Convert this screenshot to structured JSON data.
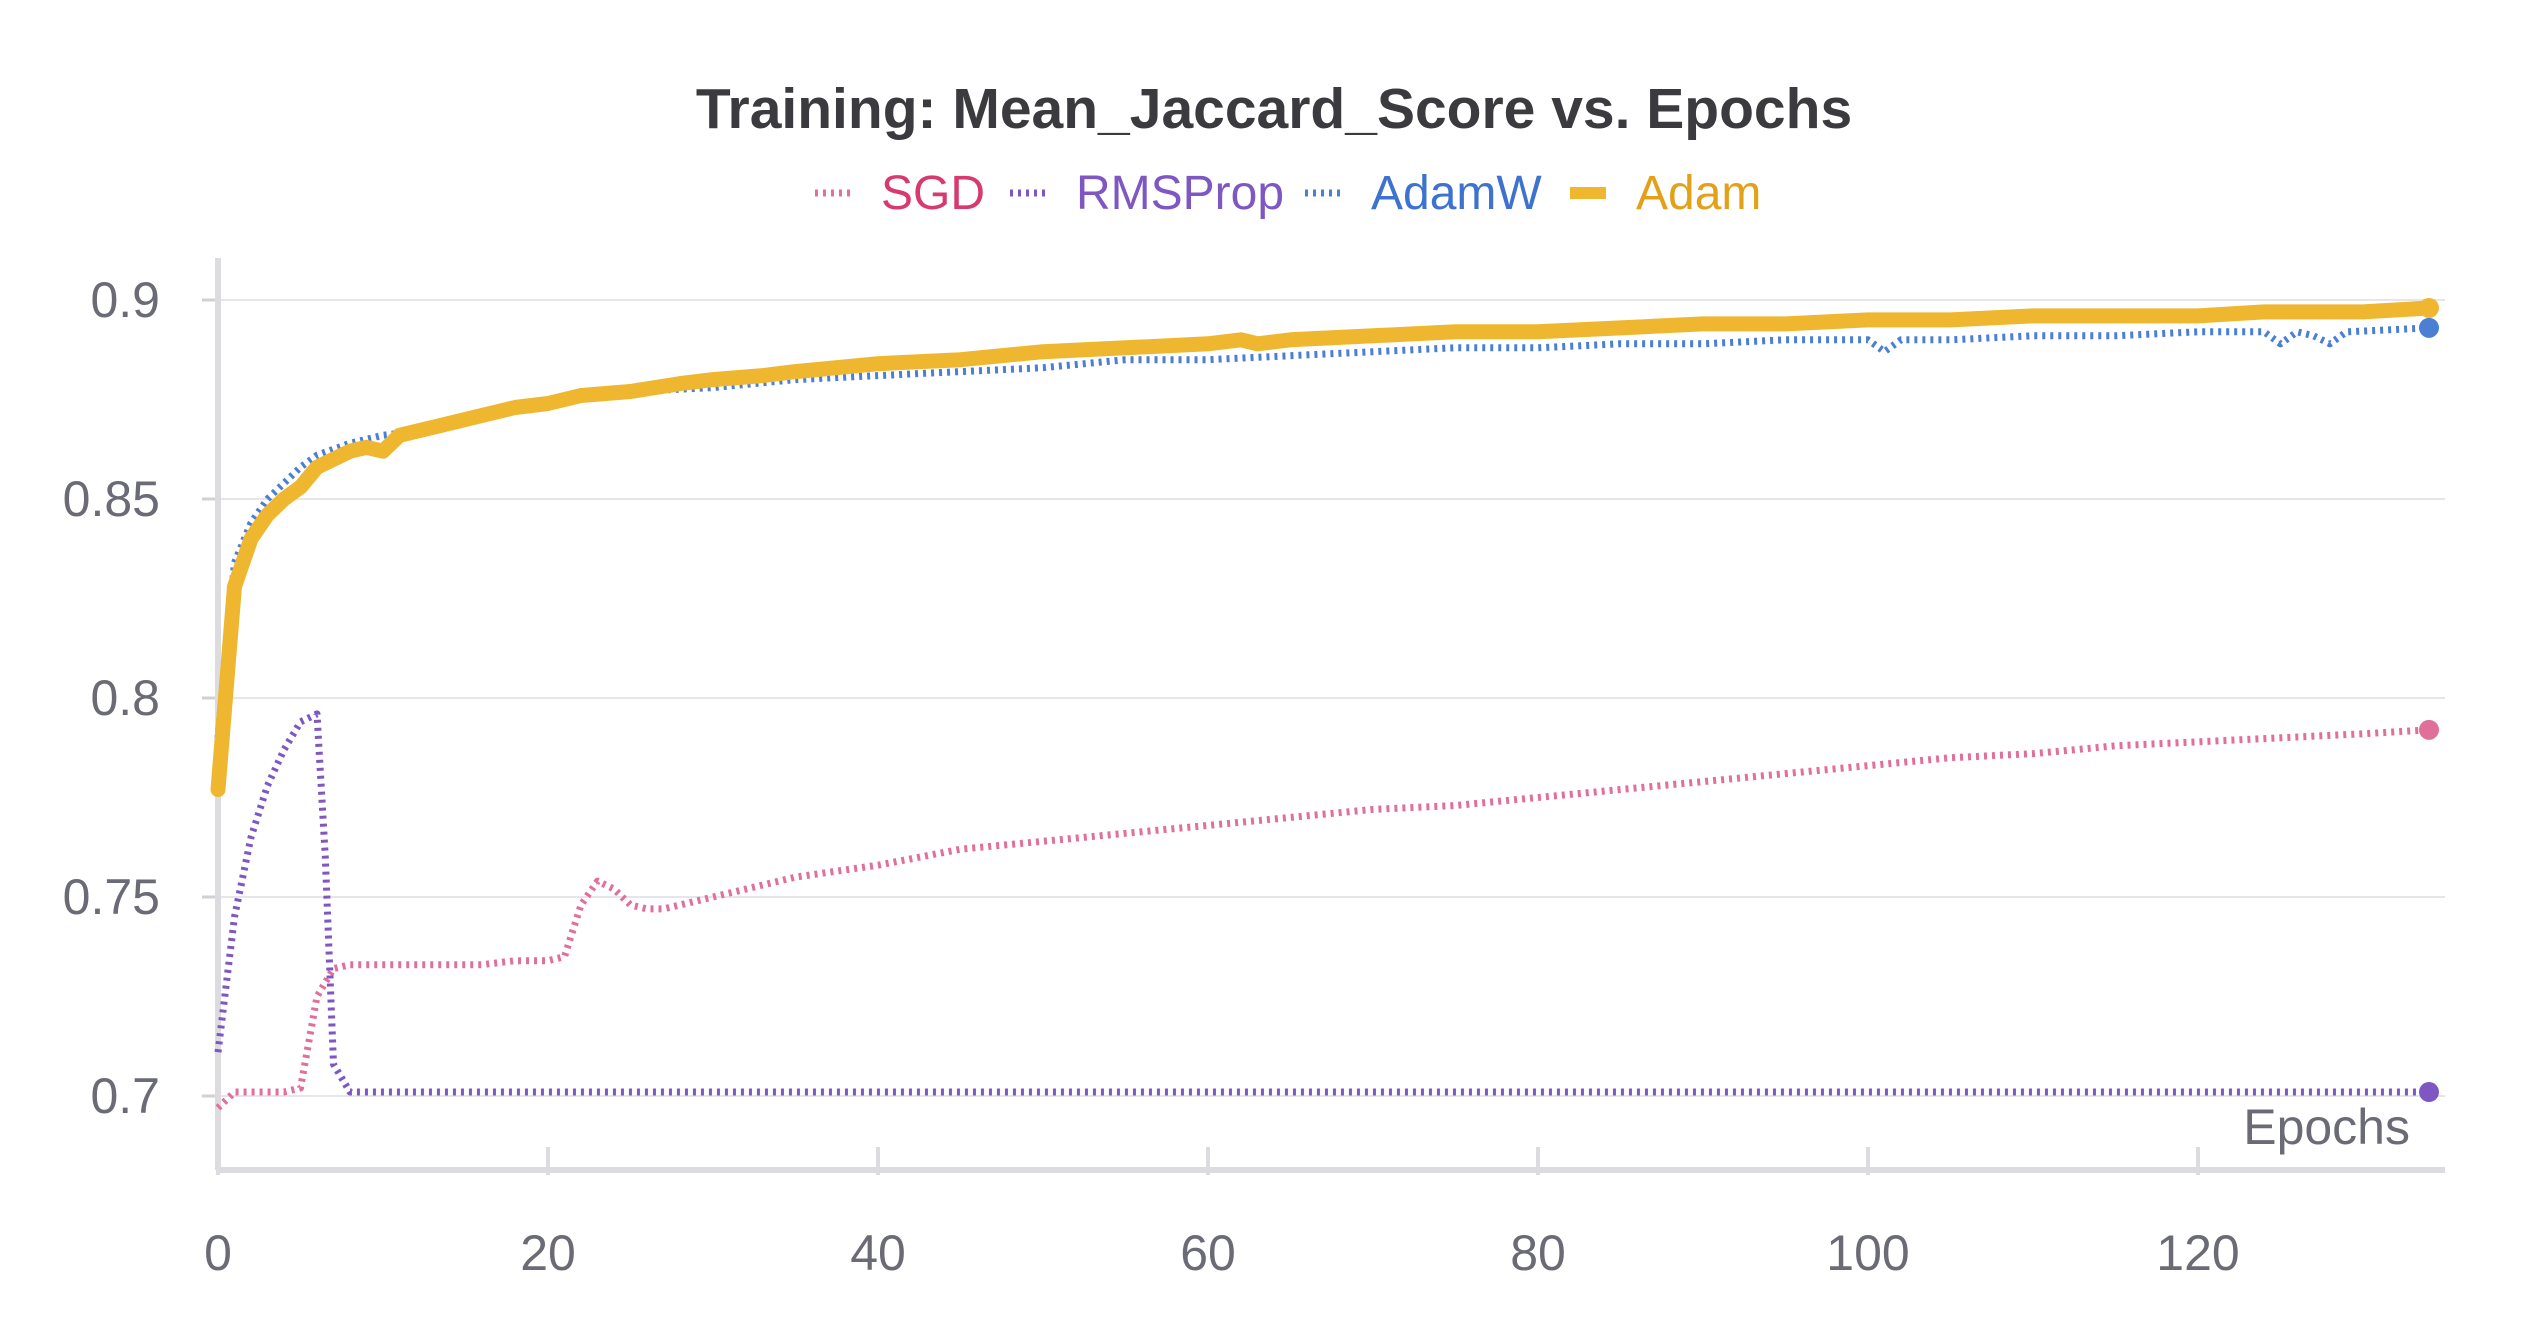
{
  "chart_data": {
    "type": "line",
    "title": "Training: Mean_Jaccard_Score vs. Epochs",
    "xlabel": "Epochs",
    "ylabel": "",
    "xlim": [
      0,
      135
    ],
    "ylim": [
      0.68,
      0.91
    ],
    "x_ticks": [
      0,
      20,
      40,
      60,
      80,
      100,
      120
    ],
    "y_ticks": [
      0.7,
      0.75,
      0.8,
      0.85,
      0.9
    ],
    "x_tick_labels": [
      "0",
      "20",
      "40",
      "60",
      "80",
      "100",
      "120"
    ],
    "y_tick_labels": [
      "0.7",
      "0.75",
      "0.8",
      "0.85",
      "0.9"
    ],
    "grid": "horizontal",
    "legend_position": "top-center",
    "series": [
      {
        "name": "SGD",
        "color": "#e0709a",
        "style": "dotted",
        "points": [
          [
            0,
            0.697
          ],
          [
            1,
            0.701
          ],
          [
            2,
            0.701
          ],
          [
            3,
            0.701
          ],
          [
            4,
            0.701
          ],
          [
            5,
            0.702
          ],
          [
            6,
            0.725
          ],
          [
            7,
            0.732
          ],
          [
            8,
            0.733
          ],
          [
            9,
            0.733
          ],
          [
            10,
            0.733
          ],
          [
            12,
            0.733
          ],
          [
            14,
            0.733
          ],
          [
            16,
            0.733
          ],
          [
            18,
            0.734
          ],
          [
            20,
            0.734
          ],
          [
            21,
            0.735
          ],
          [
            22,
            0.748
          ],
          [
            23,
            0.754
          ],
          [
            24,
            0.752
          ],
          [
            25,
            0.748
          ],
          [
            26,
            0.747
          ],
          [
            27,
            0.747
          ],
          [
            28,
            0.748
          ],
          [
            30,
            0.75
          ],
          [
            35,
            0.755
          ],
          [
            40,
            0.758
          ],
          [
            45,
            0.762
          ],
          [
            50,
            0.764
          ],
          [
            55,
            0.766
          ],
          [
            60,
            0.768
          ],
          [
            65,
            0.77
          ],
          [
            70,
            0.772
          ],
          [
            75,
            0.773
          ],
          [
            80,
            0.775
          ],
          [
            85,
            0.777
          ],
          [
            90,
            0.779
          ],
          [
            95,
            0.781
          ],
          [
            100,
            0.783
          ],
          [
            105,
            0.785
          ],
          [
            110,
            0.786
          ],
          [
            115,
            0.788
          ],
          [
            120,
            0.789
          ],
          [
            125,
            0.79
          ],
          [
            130,
            0.791
          ],
          [
            134,
            0.792
          ]
        ]
      },
      {
        "name": "RMSProp",
        "color": "#7e57c2",
        "style": "dotted",
        "points": [
          [
            0,
            0.711
          ],
          [
            1,
            0.745
          ],
          [
            2,
            0.765
          ],
          [
            3,
            0.778
          ],
          [
            4,
            0.787
          ],
          [
            5,
            0.794
          ],
          [
            6,
            0.796
          ],
          [
            6.5,
            0.76
          ],
          [
            7,
            0.708
          ],
          [
            8,
            0.701
          ],
          [
            10,
            0.701
          ],
          [
            20,
            0.701
          ],
          [
            40,
            0.701
          ],
          [
            60,
            0.701
          ],
          [
            80,
            0.701
          ],
          [
            100,
            0.701
          ],
          [
            120,
            0.701
          ],
          [
            134,
            0.701
          ]
        ]
      },
      {
        "name": "AdamW",
        "color": "#4a7fd4",
        "style": "dotted",
        "points": [
          [
            0,
            0.79
          ],
          [
            1,
            0.834
          ],
          [
            2,
            0.844
          ],
          [
            3,
            0.85
          ],
          [
            4,
            0.854
          ],
          [
            5,
            0.858
          ],
          [
            6,
            0.861
          ],
          [
            8,
            0.864
          ],
          [
            10,
            0.866
          ],
          [
            12,
            0.867
          ],
          [
            15,
            0.87
          ],
          [
            20,
            0.874
          ],
          [
            25,
            0.877
          ],
          [
            30,
            0.878
          ],
          [
            35,
            0.88
          ],
          [
            40,
            0.881
          ],
          [
            45,
            0.882
          ],
          [
            50,
            0.883
          ],
          [
            55,
            0.885
          ],
          [
            60,
            0.885
          ],
          [
            65,
            0.886
          ],
          [
            70,
            0.887
          ],
          [
            75,
            0.888
          ],
          [
            80,
            0.888
          ],
          [
            85,
            0.889
          ],
          [
            90,
            0.889
          ],
          [
            95,
            0.89
          ],
          [
            100,
            0.89
          ],
          [
            101,
            0.887
          ],
          [
            102,
            0.89
          ],
          [
            105,
            0.89
          ],
          [
            110,
            0.891
          ],
          [
            115,
            0.891
          ],
          [
            120,
            0.892
          ],
          [
            124,
            0.892
          ],
          [
            125,
            0.889
          ],
          [
            126,
            0.892
          ],
          [
            127,
            0.891
          ],
          [
            128,
            0.889
          ],
          [
            129,
            0.892
          ],
          [
            134,
            0.893
          ]
        ]
      },
      {
        "name": "Adam",
        "color": "#efb730",
        "style": "solid",
        "points": [
          [
            0,
            0.777
          ],
          [
            1,
            0.828
          ],
          [
            2,
            0.84
          ],
          [
            3,
            0.846
          ],
          [
            4,
            0.85
          ],
          [
            5,
            0.853
          ],
          [
            6,
            0.858
          ],
          [
            7,
            0.86
          ],
          [
            8,
            0.862
          ],
          [
            9,
            0.863
          ],
          [
            10,
            0.862
          ],
          [
            11,
            0.866
          ],
          [
            13,
            0.868
          ],
          [
            15,
            0.87
          ],
          [
            18,
            0.873
          ],
          [
            20,
            0.874
          ],
          [
            22,
            0.876
          ],
          [
            25,
            0.877
          ],
          [
            28,
            0.879
          ],
          [
            30,
            0.88
          ],
          [
            33,
            0.881
          ],
          [
            35,
            0.882
          ],
          [
            40,
            0.884
          ],
          [
            45,
            0.885
          ],
          [
            50,
            0.887
          ],
          [
            55,
            0.888
          ],
          [
            60,
            0.889
          ],
          [
            62,
            0.89
          ],
          [
            63,
            0.889
          ],
          [
            65,
            0.89
          ],
          [
            70,
            0.891
          ],
          [
            75,
            0.892
          ],
          [
            80,
            0.892
          ],
          [
            85,
            0.893
          ],
          [
            90,
            0.894
          ],
          [
            95,
            0.894
          ],
          [
            100,
            0.895
          ],
          [
            105,
            0.895
          ],
          [
            110,
            0.896
          ],
          [
            115,
            0.896
          ],
          [
            120,
            0.896
          ],
          [
            124,
            0.897
          ],
          [
            125,
            0.897
          ],
          [
            130,
            0.897
          ],
          [
            134,
            0.898
          ]
        ]
      }
    ]
  }
}
